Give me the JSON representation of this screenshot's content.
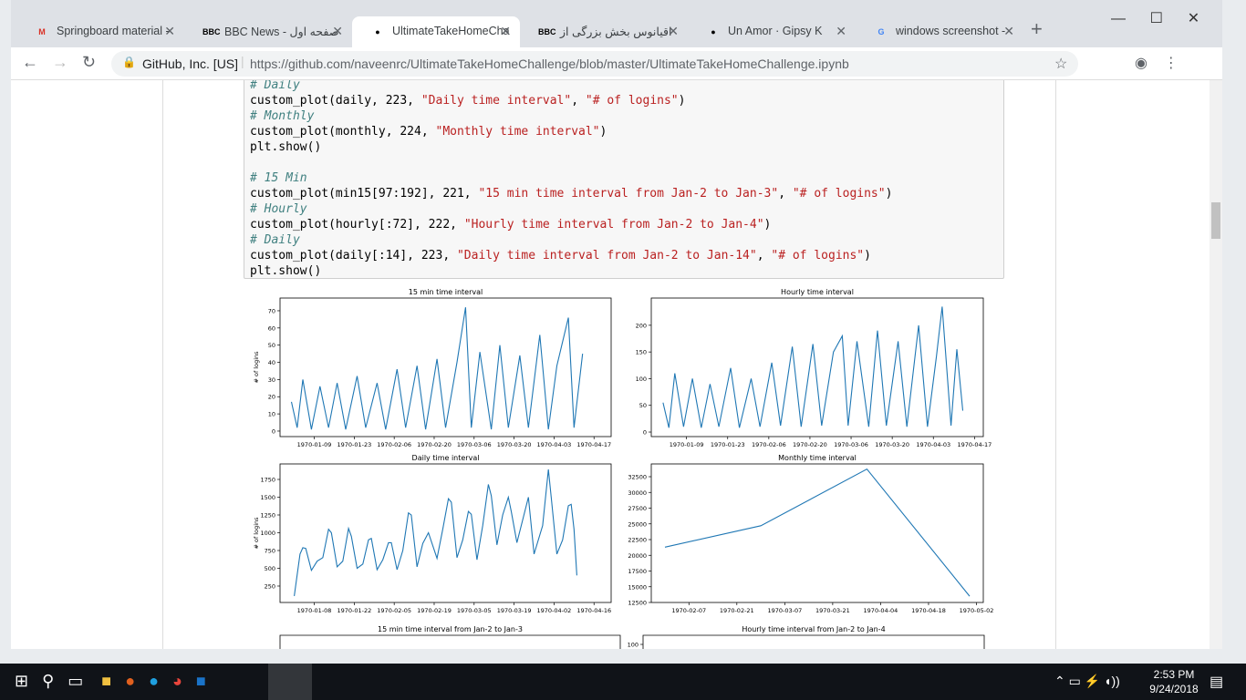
{
  "browser": {
    "tabs": [
      "Springboard material -",
      "صفحه اول - BBC News",
      "UltimateTakeHomeCha",
      "اقیانوس بخش بزرگی از",
      "Un Amor · Gipsy K",
      "windows screenshot -"
    ],
    "site_identity": "GitHub, Inc. [US]",
    "url": "https://github.com/naveenrc/UltimateTakeHomeChallenge/blob/master/UltimateTakeHomeChallenge.ipynb"
  },
  "notebook": {
    "code": {
      "blocks": [
        [
          [
            {
              "text": "# Daily",
              "style": "comment"
            }
          ],
          [
            {
              "text": "custom_plot(daily, 223, ",
              "style": "plain"
            },
            {
              "text": "\"Daily time interval\"",
              "style": "string"
            },
            {
              "text": ", ",
              "style": "plain"
            },
            {
              "text": "\"# of logins\"",
              "style": "string"
            },
            {
              "text": ")",
              "style": "plain"
            }
          ],
          [
            {
              "text": "# Monthly",
              "style": "comment"
            }
          ],
          [
            {
              "text": "custom_plot(monthly, 224, ",
              "style": "plain"
            },
            {
              "text": "\"Monthly time interval\"",
              "style": "string"
            },
            {
              "text": ")",
              "style": "plain"
            }
          ],
          [
            {
              "text": "plt.show()",
              "style": "plain"
            }
          ]
        ],
        [
          [
            {
              "text": "# 15 Min",
              "style": "comment"
            }
          ],
          [
            {
              "text": "custom_plot(min15[97:192], 221, ",
              "style": "plain"
            },
            {
              "text": "\"15 min time interval from Jan-2 to Jan-3\"",
              "style": "string"
            },
            {
              "text": ", ",
              "style": "plain"
            },
            {
              "text": "\"# of logins\"",
              "style": "string"
            },
            {
              "text": ")",
              "style": "plain"
            }
          ],
          [
            {
              "text": "# Hourly",
              "style": "comment"
            }
          ],
          [
            {
              "text": "custom_plot(hourly[:72], 222, ",
              "style": "plain"
            },
            {
              "text": "\"Hourly time interval from Jan-2 to Jan-4\"",
              "style": "string"
            },
            {
              "text": ")",
              "style": "plain"
            }
          ],
          [
            {
              "text": "# Daily",
              "style": "comment"
            }
          ],
          [
            {
              "text": "custom_plot(daily[:14], 223, ",
              "style": "plain"
            },
            {
              "text": "\"Daily time interval from Jan-2 to Jan-14\"",
              "style": "string"
            },
            {
              "text": ", ",
              "style": "plain"
            },
            {
              "text": "\"# of logins\"",
              "style": "string"
            },
            {
              "text": ")",
              "style": "plain"
            }
          ],
          [
            {
              "text": "plt.show()",
              "style": "plain"
            }
          ]
        ]
      ]
    },
    "charts": [
      {
        "type": "line",
        "title": "15 min time interval",
        "ylabel": "# of logins",
        "color": "#1f77b4",
        "x": [
          "1970-01-01",
          "1970-01-03",
          "1970-01-05",
          "1970-01-08",
          "1970-01-11",
          "1970-01-14",
          "1970-01-17",
          "1970-01-20",
          "1970-01-24",
          "1970-01-27",
          "1970-01-31",
          "1970-02-03",
          "1970-02-07",
          "1970-02-10",
          "1970-02-14",
          "1970-02-17",
          "1970-02-21",
          "1970-02-24",
          "1970-02-28",
          "1970-03-03",
          "1970-03-05",
          "1970-03-08",
          "1970-03-12",
          "1970-03-15",
          "1970-03-18",
          "1970-03-22",
          "1970-03-25",
          "1970-03-29",
          "1970-04-01",
          "1970-04-04",
          "1970-04-08",
          "1970-04-10",
          "1970-04-13"
        ],
        "values": [
          17,
          2,
          30,
          1,
          26,
          2,
          28,
          1,
          32,
          2,
          28,
          1,
          36,
          2,
          38,
          1,
          42,
          2,
          40,
          72,
          2,
          46,
          1,
          50,
          2,
          44,
          2,
          56,
          1,
          38,
          66,
          2,
          45
        ],
        "xlim": [
          "1969-12-28",
          "1970-04-23"
        ],
        "ylim": [
          -3.2,
          77.4
        ],
        "xticks": [
          "1970-01-09",
          "1970-01-23",
          "1970-02-06",
          "1970-02-20",
          "1970-03-06",
          "1970-03-20",
          "1970-04-03",
          "1970-04-17"
        ],
        "yticks": [
          0,
          10,
          20,
          30,
          40,
          50,
          60,
          70
        ]
      },
      {
        "type": "line",
        "title": "Hourly time interval",
        "color": "#1f77b4",
        "x": [
          "1970-01-01",
          "1970-01-03",
          "1970-01-05",
          "1970-01-08",
          "1970-01-11",
          "1970-01-14",
          "1970-01-17",
          "1970-01-20",
          "1970-01-24",
          "1970-01-27",
          "1970-01-31",
          "1970-02-03",
          "1970-02-07",
          "1970-02-10",
          "1970-02-14",
          "1970-02-17",
          "1970-02-21",
          "1970-02-24",
          "1970-02-28",
          "1970-03-03",
          "1970-03-05",
          "1970-03-08",
          "1970-03-12",
          "1970-03-15",
          "1970-03-18",
          "1970-03-22",
          "1970-03-25",
          "1970-03-29",
          "1970-04-01",
          "1970-04-04",
          "1970-04-06",
          "1970-04-09",
          "1970-04-11",
          "1970-04-13"
        ],
        "values": [
          55,
          8,
          110,
          10,
          100,
          8,
          90,
          10,
          120,
          8,
          100,
          10,
          130,
          12,
          160,
          10,
          165,
          12,
          150,
          180,
          12,
          170,
          10,
          190,
          12,
          170,
          10,
          200,
          10,
          140,
          235,
          12,
          155,
          40
        ],
        "xlim": [
          "1969-12-28",
          "1970-04-20"
        ],
        "ylim": [
          -8.5,
          251
        ],
        "xticks": [
          "1970-01-09",
          "1970-01-23",
          "1970-02-06",
          "1970-02-20",
          "1970-03-06",
          "1970-03-20",
          "1970-04-03",
          "1970-04-17"
        ],
        "yticks": [
          0,
          50,
          100,
          150,
          200
        ]
      },
      {
        "type": "line",
        "title": "Daily time interval",
        "ylabel": "# of logins",
        "color": "#1f77b4",
        "x": [
          "1970-01-01",
          "1970-01-03",
          "1970-01-04",
          "1970-01-05",
          "1970-01-07",
          "1970-01-09",
          "1970-01-11",
          "1970-01-13",
          "1970-01-14",
          "1970-01-16",
          "1970-01-18",
          "1970-01-20",
          "1970-01-21",
          "1970-01-23",
          "1970-01-25",
          "1970-01-27",
          "1970-01-28",
          "1970-01-30",
          "1970-02-01",
          "1970-02-03",
          "1970-02-04",
          "1970-02-06",
          "1970-02-08",
          "1970-02-10",
          "1970-02-11",
          "1970-02-13",
          "1970-02-15",
          "1970-02-17",
          "1970-02-20",
          "1970-02-22",
          "1970-02-24",
          "1970-02-25",
          "1970-02-27",
          "1970-03-01",
          "1970-03-03",
          "1970-03-04",
          "1970-03-06",
          "1970-03-08",
          "1970-03-10",
          "1970-03-11",
          "1970-03-13",
          "1970-03-15",
          "1970-03-17",
          "1970-03-18",
          "1970-03-20",
          "1970-03-22",
          "1970-03-24",
          "1970-03-26",
          "1970-03-29",
          "1970-03-31",
          "1970-04-01",
          "1970-04-03",
          "1970-04-05",
          "1970-04-07",
          "1970-04-08",
          "1970-04-09",
          "1970-04-10"
        ],
        "values": [
          110,
          700,
          790,
          780,
          470,
          600,
          650,
          1050,
          1000,
          520,
          600,
          1060,
          950,
          500,
          560,
          900,
          920,
          480,
          620,
          860,
          860,
          480,
          750,
          1280,
          1250,
          520,
          850,
          1000,
          640,
          1050,
          1480,
          1430,
          650,
          900,
          1300,
          1260,
          620,
          1100,
          1680,
          1520,
          830,
          1250,
          1500,
          1300,
          860,
          1180,
          1500,
          700,
          1100,
          1890,
          1500,
          700,
          900,
          1380,
          1400,
          1050,
          400
        ],
        "xlim": [
          "1969-12-27",
          "1970-04-22"
        ],
        "ylim": [
          19,
          1968
        ],
        "xticks": [
          "1970-01-08",
          "1970-01-22",
          "1970-02-05",
          "1970-02-19",
          "1970-03-05",
          "1970-03-19",
          "1970-04-02",
          "1970-04-16"
        ],
        "yticks": [
          250,
          500,
          750,
          1000,
          1250,
          1500,
          1750
        ]
      },
      {
        "type": "line",
        "title": "Monthly time interval",
        "color": "#1f77b4",
        "x": [
          "1970-01-31",
          "1970-02-28",
          "1970-03-31",
          "1970-04-30"
        ],
        "values": [
          21300,
          24700,
          33700,
          13500
        ],
        "xlim": [
          "1970-01-27",
          "1970-05-04"
        ],
        "ylim": [
          12500,
          34530
        ],
        "xticks": [
          "1970-02-07",
          "1970-02-21",
          "1970-03-07",
          "1970-03-21",
          "1970-04-04",
          "1970-04-18",
          "1970-05-02"
        ],
        "yticks": [
          12500,
          15000,
          17500,
          20000,
          22500,
          25000,
          27500,
          30000,
          32500
        ]
      }
    ],
    "partial_charts": [
      {
        "title": "15 min time interval from Jan-2 to Jan-3"
      },
      {
        "title": "Hourly time interval from Jan-2 to Jan-4",
        "yticks": [
          100
        ]
      }
    ]
  },
  "taskbar": {
    "time": "2:53 PM",
    "date": "9/24/2018"
  }
}
